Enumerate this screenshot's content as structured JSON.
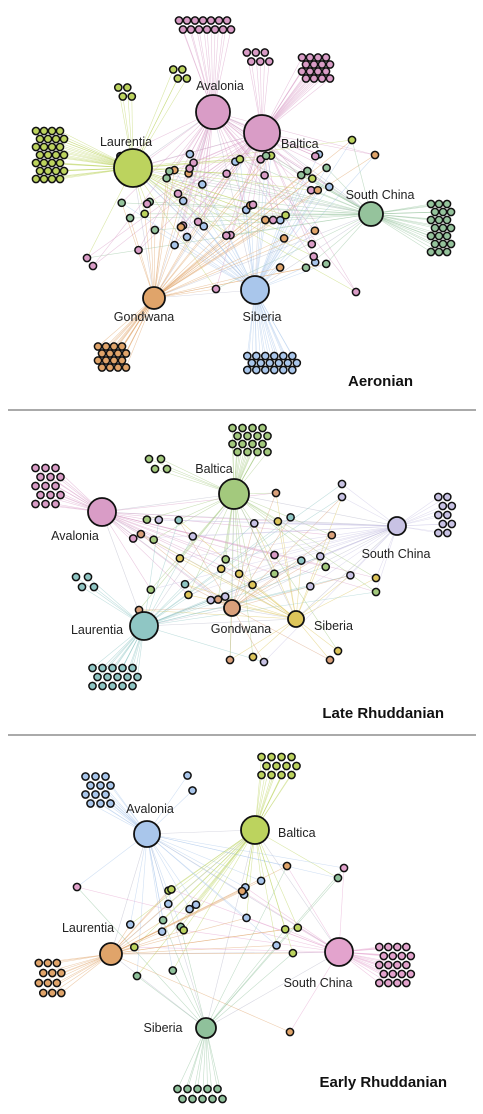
{
  "panels": [
    {
      "title": "Aeronian",
      "hubs": [
        {
          "label": "Avalonia",
          "color": "#d99cc6"
        },
        {
          "label": "Baltica",
          "color": "#d99cc6"
        },
        {
          "label": "Laurentia",
          "color": "#bcd35e"
        },
        {
          "label": "South China",
          "color": "#95c39c"
        },
        {
          "label": "Gondwana",
          "color": "#e0a46a"
        },
        {
          "label": "Siberia",
          "color": "#a9c6eb"
        }
      ]
    },
    {
      "title": "Late Rhuddanian",
      "hubs": [
        {
          "label": "Baltica",
          "color": "#a3c97d"
        },
        {
          "label": "Avalonia",
          "color": "#d99cc6"
        },
        {
          "label": "South China",
          "color": "#c8c2e4"
        },
        {
          "label": "Laurentia",
          "color": "#8fc6c4"
        },
        {
          "label": "Gondwana",
          "color": "#d9a07a"
        },
        {
          "label": "Siberia",
          "color": "#ddc55a"
        }
      ]
    },
    {
      "title": "Early Rhuddanian",
      "hubs": [
        {
          "label": "Avalonia",
          "color": "#a9c6eb"
        },
        {
          "label": "Baltica",
          "color": "#bcd35e"
        },
        {
          "label": "Laurentia",
          "color": "#e0a46a"
        },
        {
          "label": "South China",
          "color": "#e3a3cd"
        },
        {
          "label": "Siberia",
          "color": "#8fc19b"
        }
      ]
    }
  ]
}
